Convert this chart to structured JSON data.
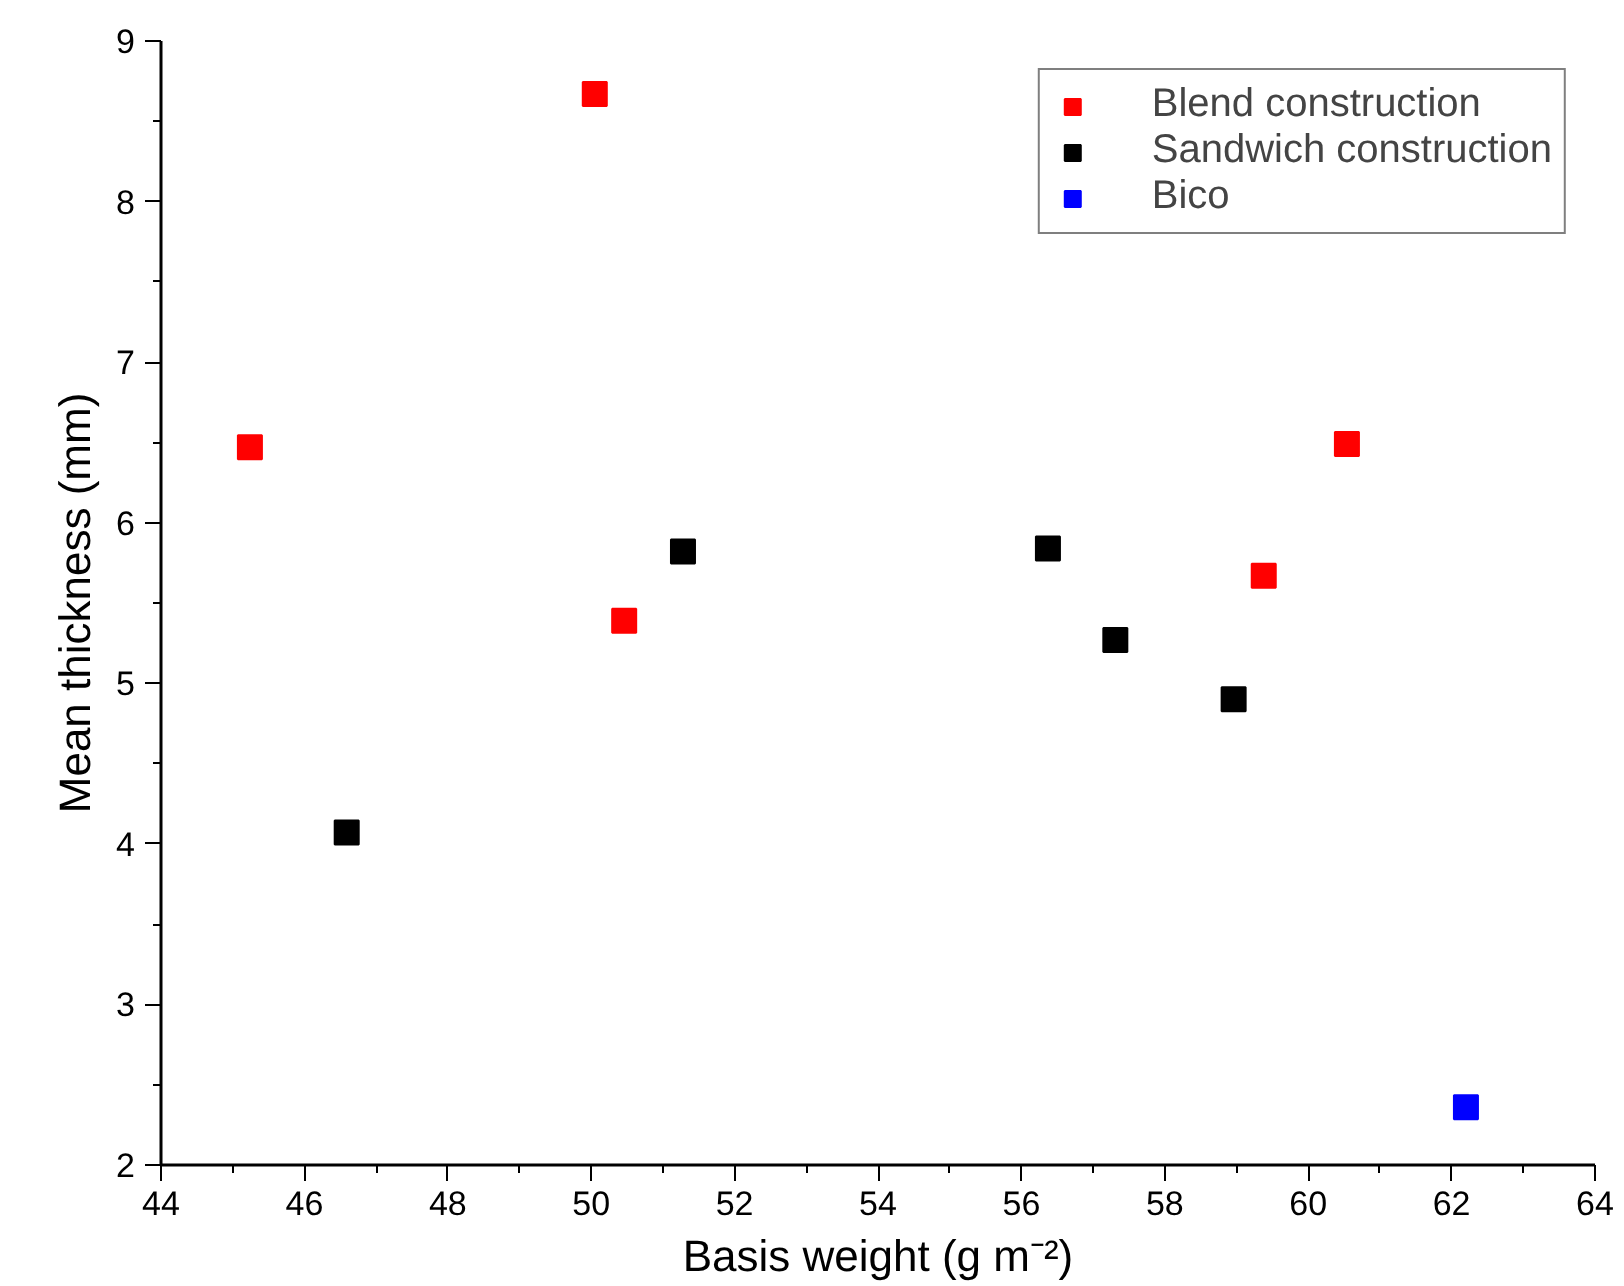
{
  "chart_data": {
    "type": "scatter",
    "xlabel": "Basis weight (g m⁻²)",
    "ylabel": "Mean thickness (mm)",
    "xlim": [
      44,
      64
    ],
    "ylim": [
      2,
      9
    ],
    "xticks": [
      44,
      {
        "value": 45,
        "label": null
      },
      46,
      {
        "value": 47,
        "label": null
      },
      48,
      {
        "value": 49,
        "label": null
      },
      50,
      {
        "value": 51,
        "label": null
      },
      52,
      {
        "value": 53,
        "label": null
      },
      54,
      {
        "value": 55,
        "label": null
      },
      56,
      {
        "value": 57,
        "label": null
      },
      58,
      {
        "value": 59,
        "label": null
      },
      60,
      {
        "value": 61,
        "label": null
      },
      62,
      {
        "value": 63,
        "label": null
      },
      64
    ],
    "yticks": [
      2,
      {
        "value": 2.5,
        "label": null
      },
      3,
      {
        "value": 3.5,
        "label": null
      },
      4,
      {
        "value": 4.5,
        "label": null
      },
      5,
      {
        "value": 5.5,
        "label": null
      },
      6,
      {
        "value": 6.5,
        "label": null
      },
      7,
      {
        "value": 7.5,
        "label": null
      },
      8,
      {
        "value": 8.5,
        "label": null
      },
      9
    ],
    "marker": "square",
    "legend": "top right",
    "grid": false,
    "series": [
      {
        "name": "Blend construction",
        "color": "#ff0000",
        "x": [
          45.24,
          50.05,
          50.46,
          59.38,
          60.54
        ],
        "values": [
          6.47,
          8.67,
          5.39,
          5.67,
          6.49
        ]
      },
      {
        "name": "Sandwich construction",
        "color": "#000000",
        "x": [
          46.59,
          51.28,
          56.37,
          57.31,
          58.96
        ],
        "values": [
          4.07,
          5.82,
          5.84,
          5.27,
          4.9
        ]
      },
      {
        "name": "Bico",
        "color": "#0000ff",
        "x": [
          62.2
        ],
        "values": [
          2.36
        ]
      }
    ]
  }
}
